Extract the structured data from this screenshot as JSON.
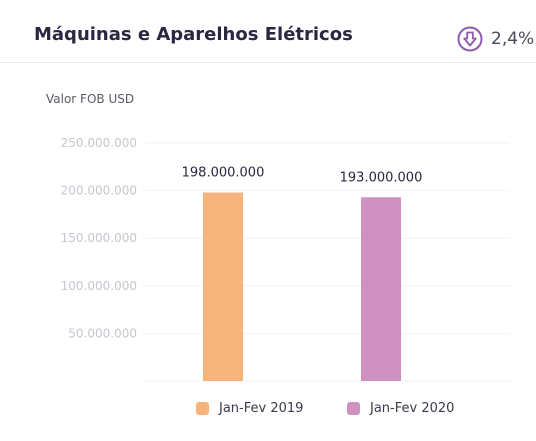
{
  "header": {
    "title": "Máquinas e Aparelhos Elétricos",
    "change_value": "2,4%",
    "change_icon": "arrow-down-circle-icon",
    "icon_color": "#8e5bb0"
  },
  "chart_data": {
    "type": "bar",
    "ylabel": "Valor FOB USD",
    "ylim": [
      0,
      250000000
    ],
    "yticks": [
      50000000,
      100000000,
      150000000,
      200000000,
      250000000
    ],
    "ytick_labels": [
      "50.000.000",
      "100.000.000",
      "150.000.000",
      "200.000.000",
      "250.000.000"
    ],
    "grid": true,
    "legend_position": "bottom",
    "series": [
      {
        "name": "Jan-Fev 2019",
        "value": 198000000,
        "label": "198.000.000",
        "color": "#f6b47c"
      },
      {
        "name": "Jan-Fev 2020",
        "value": 193000000,
        "label": "193.000.000",
        "color": "#cf92c0"
      }
    ]
  }
}
